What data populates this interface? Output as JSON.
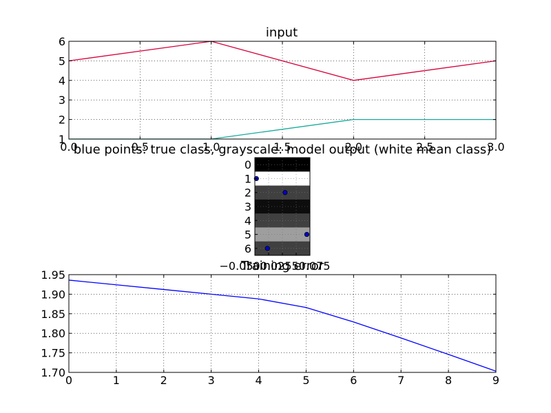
{
  "chart_data": [
    {
      "type": "line",
      "title": "input",
      "xlabel": "",
      "ylabel": "",
      "xlim": [
        0,
        3
      ],
      "ylim": [
        1,
        6
      ],
      "xticks": [
        "0.0",
        "0.5",
        "1.0",
        "1.5",
        "2.0",
        "2.5",
        "3.0"
      ],
      "yticks": [
        "1",
        "2",
        "3",
        "4",
        "5",
        "6"
      ],
      "grid": true,
      "legend": "none",
      "series": [
        {
          "color": "#d6003a",
          "x": [
            0,
            1,
            2,
            3
          ],
          "values": [
            5,
            6,
            4,
            5
          ]
        },
        {
          "color": "#17ab9a",
          "x": [
            0,
            1,
            2,
            3
          ],
          "values": [
            1,
            1,
            2,
            2
          ]
        }
      ]
    },
    {
      "type": "heatmap",
      "title": "blue points: true class, grayscale: model output (white mean class)",
      "xlabel": "",
      "ylabel": "",
      "rows": [
        "0",
        "1",
        "2",
        "3",
        "4",
        "5",
        "6"
      ],
      "xlim": [
        -0.1,
        0.075
      ],
      "xtick_text": "−0.0500.02550.075",
      "grid": true,
      "cell_columns": 4,
      "cell_gray": [
        [
          0.0,
          0.0,
          0.0,
          0.0
        ],
        [
          1.0,
          1.0,
          1.0,
          1.0
        ],
        [
          0.25,
          0.25,
          0.25,
          0.25
        ],
        [
          0.05,
          0.05,
          0.05,
          0.05
        ],
        [
          0.25,
          0.25,
          0.25,
          0.25
        ],
        [
          0.62,
          0.62,
          0.62,
          0.62
        ],
        [
          0.25,
          0.25,
          0.25,
          0.25
        ]
      ],
      "points": [
        {
          "row": 1,
          "x": -0.095
        },
        {
          "row": 2,
          "x": -0.004
        },
        {
          "row": 5,
          "x": 0.065
        },
        {
          "row": 6,
          "x": -0.06
        }
      ],
      "point_color": "#0000cc"
    },
    {
      "type": "line",
      "title": "Training error",
      "xlabel": "",
      "ylabel": "",
      "xlim": [
        0,
        9
      ],
      "ylim": [
        1.7,
        1.95
      ],
      "xticks": [
        "0",
        "1",
        "2",
        "3",
        "4",
        "5",
        "6",
        "7",
        "8",
        "9"
      ],
      "yticks": [
        "1.70",
        "1.75",
        "1.80",
        "1.85",
        "1.90",
        "1.95"
      ],
      "grid": true,
      "legend": "none",
      "series": [
        {
          "color": "#0000ff",
          "x": [
            0,
            1,
            2,
            3,
            4,
            5,
            6,
            7,
            8,
            9
          ],
          "values": [
            1.936,
            1.924,
            1.912,
            1.9,
            1.888,
            1.866,
            1.829,
            1.788,
            1.746,
            1.703
          ]
        }
      ]
    }
  ]
}
